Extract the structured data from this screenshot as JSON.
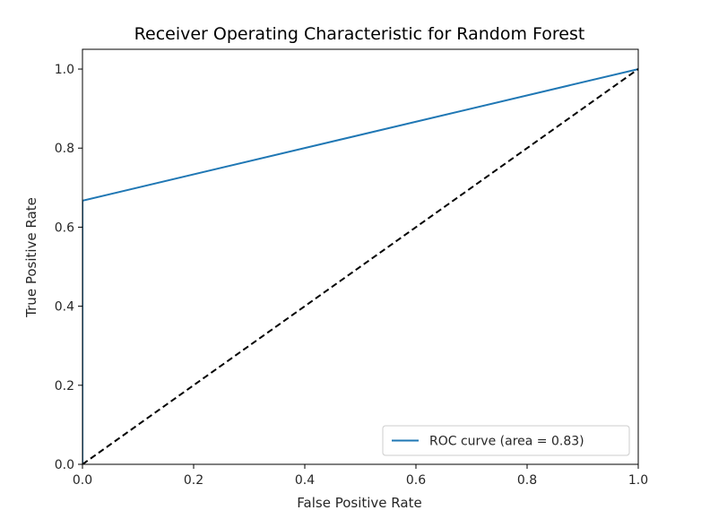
{
  "chart_data": {
    "type": "line",
    "title": "Receiver Operating Characteristic for Random Forest",
    "xlabel": "False Positive Rate",
    "ylabel": "True Positive Rate",
    "xlim": [
      0.0,
      1.0
    ],
    "ylim": [
      0.0,
      1.05
    ],
    "xticks": [
      "0.0",
      "0.2",
      "0.4",
      "0.6",
      "0.8",
      "1.0"
    ],
    "yticks": [
      "0.0",
      "0.2",
      "0.4",
      "0.6",
      "0.8",
      "1.0"
    ],
    "grid": false,
    "legend_position": "lower-right",
    "series": [
      {
        "name": "ROC curve (area = 0.83)",
        "color": "#1f77b4",
        "style": "solid",
        "x": [
          0.0,
          0.0,
          1.0
        ],
        "y": [
          0.0,
          0.667,
          1.0
        ]
      },
      {
        "color": "#000000",
        "style": "dashed",
        "x": [
          0.0,
          1.0
        ],
        "y": [
          0.0,
          1.0
        ]
      }
    ]
  }
}
